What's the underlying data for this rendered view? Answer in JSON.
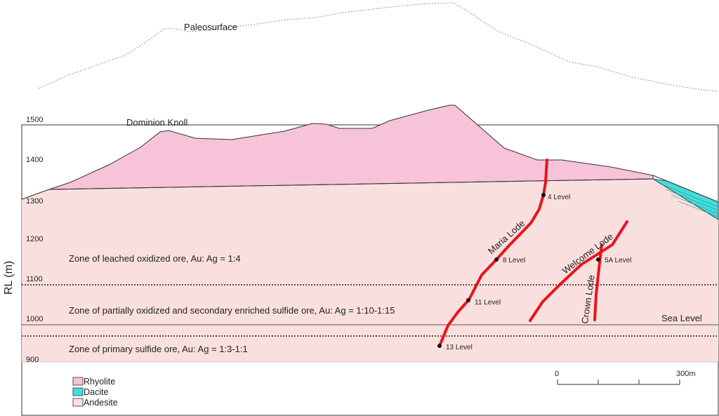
{
  "diagram": {
    "paleosurface_label": "Paleosurface",
    "knoll_label": "Dominion Knoll",
    "axis_label": "RL (m)",
    "rl_ticks": [
      "1500",
      "1400",
      "1300",
      "1200",
      "1100",
      "1000",
      "900"
    ],
    "sea_level_label": "Sea Level",
    "zones": {
      "leached": "Zone of leached oxidized ore, Au: Ag = 1:4",
      "partial": "Zone of partially oxidized and secondary enriched sulfide ore, Au: Ag = 1:10-1:15",
      "primary": "Zone of primary sulfide ore, Au: Ag = 1:3-1:1"
    },
    "levels": [
      "4 Level",
      "8 Level",
      "11 Level",
      "13 Level",
      "5A Level"
    ],
    "lodes": [
      "Maria Lode",
      "Welcome Lode",
      "Crown Lode"
    ],
    "scale": {
      "start": "0",
      "end": "300m"
    },
    "legend": [
      {
        "label": "Rhyolite",
        "color": "#f7c3d8"
      },
      {
        "label": "Dacite",
        "color": "#45dcdc"
      },
      {
        "label": "Andesite",
        "color": "#f9e0df"
      }
    ],
    "colors": {
      "lode": "#e8141c",
      "rhyolite": "#f7c3d8",
      "andesite": "#f9e0df",
      "dacite": "#45dcdc"
    }
  }
}
